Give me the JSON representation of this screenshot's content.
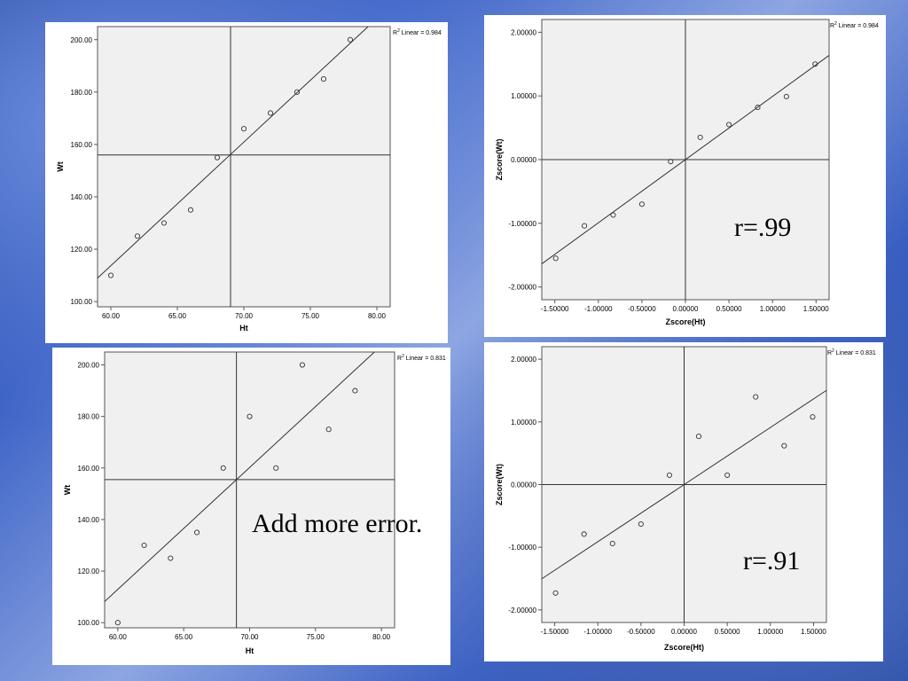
{
  "annotations": {
    "r_top": "r=.99",
    "r_bottom": "r=.91",
    "caption": "Add more error."
  },
  "chart_data": [
    {
      "id": "raw-top",
      "type": "scatter",
      "xlabel": "Ht",
      "ylabel": "Wt",
      "r2_prefix": "R",
      "r2_text": " Linear = 0.984",
      "xlim": [
        59,
        81
      ],
      "ylim": [
        98,
        205
      ],
      "xticks": [
        60,
        65,
        70,
        75,
        80
      ],
      "xtick_labels": [
        "60.00",
        "65.00",
        "70.00",
        "75.00",
        "80.00"
      ],
      "yticks": [
        100,
        120,
        140,
        160,
        180,
        200
      ],
      "ytick_labels": [
        "100.00",
        "120.00",
        "140.00",
        "160.00",
        "180.00",
        "200.00"
      ],
      "ref_x": 69,
      "ref_y": 156,
      "fit": {
        "slope": 4.72,
        "intercept": -169.5
      },
      "points": {
        "x": [
          60,
          62,
          64,
          66,
          68,
          70,
          72,
          74,
          76,
          78
        ],
        "y": [
          110,
          125,
          130,
          135,
          155,
          166,
          172,
          180,
          185,
          200
        ]
      }
    },
    {
      "id": "z-top",
      "type": "scatter",
      "xlabel": "Zscore(Ht)",
      "ylabel": "Zscore(Wt)",
      "r2_prefix": "R",
      "r2_text": " Linear = 0.984",
      "xlim": [
        -1.65,
        1.65
      ],
      "ylim": [
        -2.2,
        2.2
      ],
      "xticks": [
        -1.5,
        -1.0,
        -0.5,
        0,
        0.5,
        1.0,
        1.5
      ],
      "xtick_labels": [
        "-1.50000",
        "-1.00000",
        "-0.50000",
        "0.00000",
        "0.50000",
        "1.00000",
        "1.50000"
      ],
      "yticks": [
        -2,
        -1,
        0,
        1,
        2
      ],
      "ytick_labels": [
        "-2.00000",
        "-1.00000",
        "0.00000",
        "1.00000",
        "2.00000"
      ],
      "ref_x": 0,
      "ref_y": 0,
      "fit": {
        "slope": 0.992,
        "intercept": 0
      },
      "points": {
        "x": [
          -1.49,
          -1.16,
          -0.83,
          -0.5,
          -0.17,
          0.17,
          0.5,
          0.83,
          1.16,
          1.49
        ],
        "y": [
          -1.55,
          -1.04,
          -0.87,
          -0.7,
          -0.03,
          0.35,
          0.55,
          0.82,
          0.99,
          1.5
        ]
      }
    },
    {
      "id": "raw-bottom",
      "type": "scatter",
      "xlabel": "Ht",
      "ylabel": "Wt",
      "r2_prefix": "R",
      "r2_text": " Linear = 0.831",
      "xlim": [
        59,
        81
      ],
      "ylim": [
        98,
        205
      ],
      "xticks": [
        60,
        65,
        70,
        75,
        80
      ],
      "xtick_labels": [
        "60.00",
        "65.00",
        "70.00",
        "75.00",
        "80.00"
      ],
      "yticks": [
        100,
        120,
        140,
        160,
        180,
        200
      ],
      "ytick_labels": [
        "100.00",
        "120.00",
        "140.00",
        "160.00",
        "180.00",
        "200.00"
      ],
      "ref_x": 69,
      "ref_y": 155.5,
      "fit": {
        "slope": 4.73,
        "intercept": -170.9
      },
      "points": {
        "x": [
          60,
          62,
          64,
          66,
          68,
          70,
          72,
          74,
          76,
          78
        ],
        "y": [
          100,
          130,
          125,
          135,
          160,
          180,
          160,
          200,
          175,
          190
        ]
      }
    },
    {
      "id": "z-bottom",
      "type": "scatter",
      "xlabel": "Zscore(Ht)",
      "ylabel": "Zscore(Wt)",
      "r2_prefix": "R",
      "r2_text": " Linear = 0.831",
      "xlim": [
        -1.65,
        1.65
      ],
      "ylim": [
        -2.2,
        2.2
      ],
      "xticks": [
        -1.5,
        -1.0,
        -0.5,
        0,
        0.5,
        1.0,
        1.5
      ],
      "xtick_labels": [
        "-1.50000",
        "-1.00000",
        "-0.50000",
        "0.00000",
        "0.50000",
        "1.00000",
        "1.50000"
      ],
      "yticks": [
        -2,
        -1,
        0,
        1,
        2
      ],
      "ytick_labels": [
        "-2.00000",
        "-1.00000",
        "0.00000",
        "1.00000",
        "2.00000"
      ],
      "ref_x": 0,
      "ref_y": 0,
      "fit": {
        "slope": 0.911,
        "intercept": 0
      },
      "points": {
        "x": [
          -1.49,
          -1.16,
          -0.83,
          -0.5,
          -0.17,
          0.17,
          0.5,
          0.83,
          1.16,
          1.49
        ],
        "y": [
          -1.73,
          -0.79,
          -0.94,
          -0.63,
          0.15,
          0.77,
          0.15,
          1.4,
          0.62,
          1.08
        ]
      }
    }
  ]
}
